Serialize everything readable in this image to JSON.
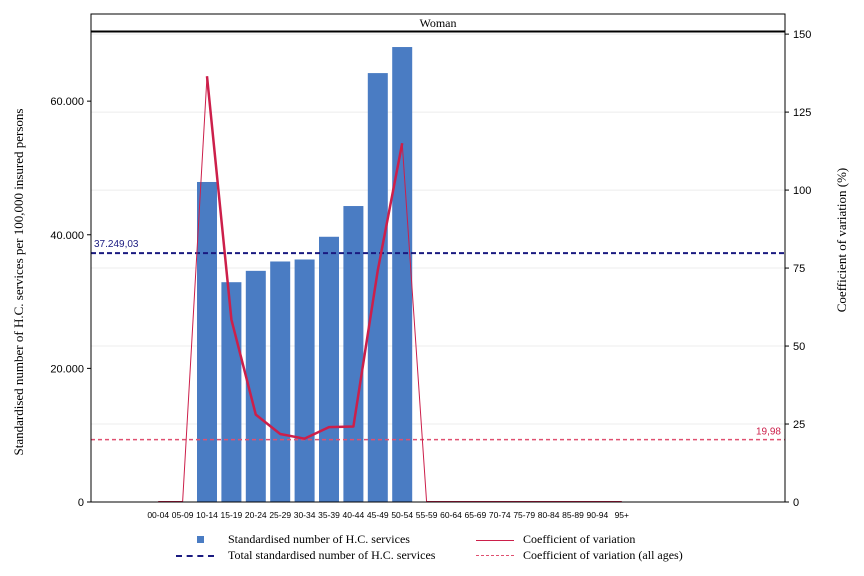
{
  "chart_data": {
    "type": "bar",
    "panel_title": "Woman",
    "categories": [
      "00-04",
      "05-09",
      "10-14",
      "15-19",
      "20-24",
      "25-29",
      "30-34",
      "35-39",
      "40-44",
      "45-49",
      "50-54",
      "55-59",
      "60-64",
      "65-69",
      "70-74",
      "75-79",
      "80-84",
      "85-89",
      "90-94",
      "95+"
    ],
    "series": [
      {
        "name": "Standardised number of H.C. services",
        "kind": "bar",
        "axis": "left",
        "values": [
          0,
          0,
          47900,
          32900,
          34600,
          36000,
          36300,
          39700,
          44300,
          64200,
          68100,
          0,
          0,
          0,
          0,
          0,
          0,
          0,
          0,
          0
        ]
      },
      {
        "name": "Coefficient of variation",
        "kind": "line",
        "axis": "right",
        "values": [
          0,
          0,
          136.5,
          58.5,
          28,
          21.8,
          20.3,
          24,
          24.2,
          74.3,
          115,
          0,
          0,
          0,
          0,
          0,
          0,
          0,
          0,
          0
        ]
      }
    ],
    "reference_lines": [
      {
        "name": "Total standardised number of H.C. services",
        "axis": "left",
        "value": 37249.03,
        "label": "37.249,03",
        "color": "#1a1a80"
      },
      {
        "name": "Coefficient of variation (all ages)",
        "axis": "right",
        "value": 19.98,
        "label": "19,98",
        "color": "#cc1f4a"
      }
    ],
    "ylabel": "Standardised number of H.C. services per 100,000 insured persons",
    "y2label": "Coefficient of variation (%)",
    "ylim": [
      0,
      70500
    ],
    "y_ticks": [
      0,
      20000,
      40000,
      60000
    ],
    "y_tick_labels": [
      "0",
      "20.000",
      "40.000",
      "60.000"
    ],
    "y2lim": [
      0,
      151
    ],
    "y2_ticks": [
      0,
      25,
      50,
      75,
      100,
      125,
      150
    ],
    "y2_tick_labels": [
      "0",
      "25",
      "50",
      "75",
      "100",
      "125",
      "150"
    ],
    "grid": true,
    "legend_position": "bottom"
  },
  "colors": {
    "bar": "#4a7cc3",
    "cv_line": "#cc1f4a",
    "total_line": "#1a1a80",
    "cv_all_line": "#e05070"
  },
  "legend": {
    "items": [
      "Standardised number of H.C. services",
      "Coefficient of variation",
      "Total standardised number of H.C. services",
      "Coefficient of variation (all ages)"
    ]
  }
}
